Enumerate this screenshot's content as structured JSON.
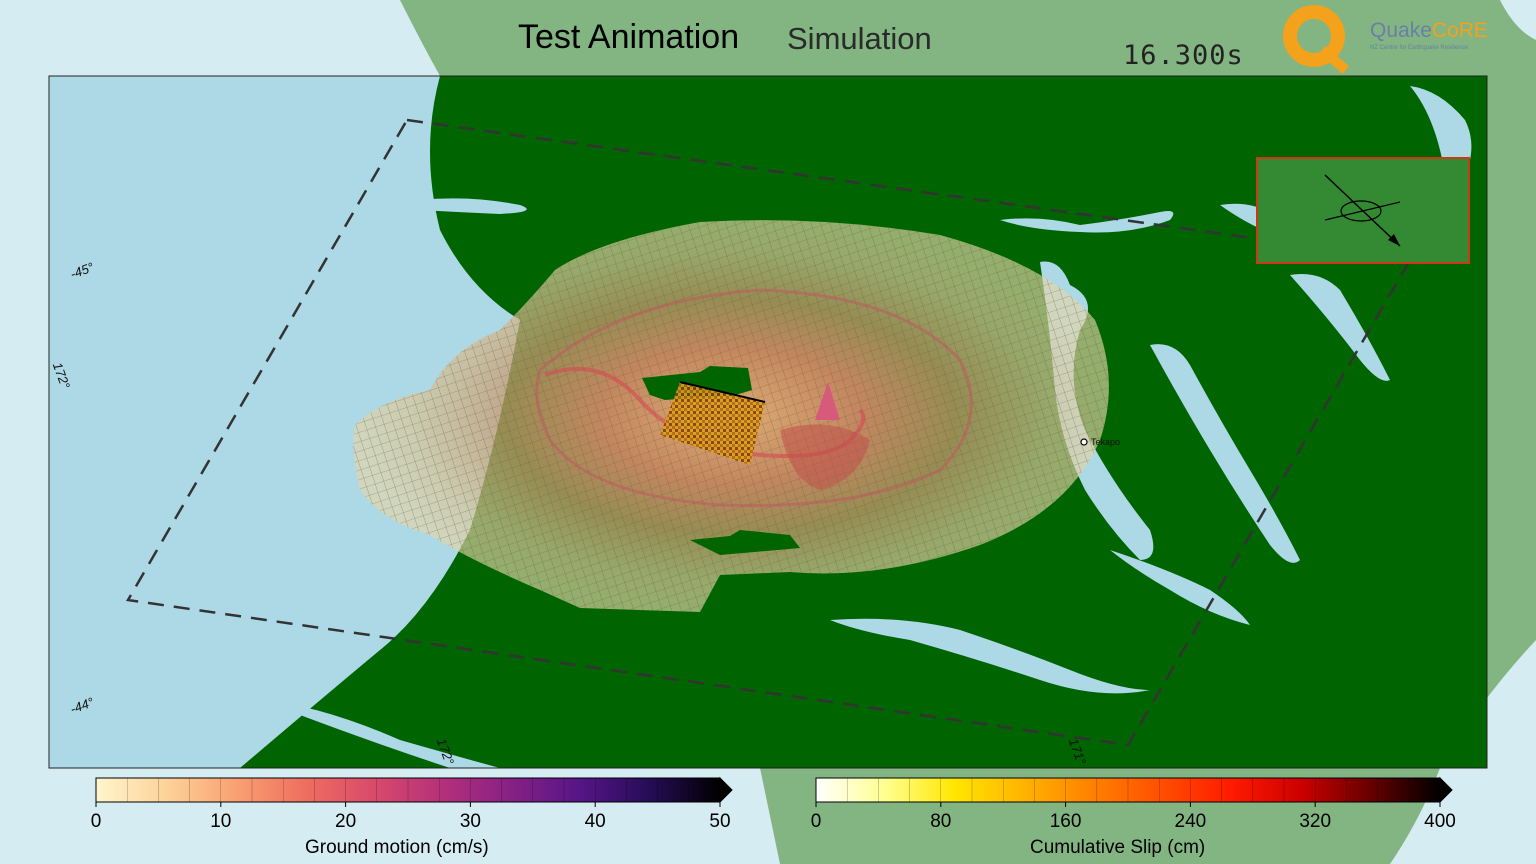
{
  "header": {
    "title": "Test Animation",
    "subtitle": "Simulation",
    "time": "16.300s",
    "logo": {
      "prefix": "Quake",
      "highlight": "CoRE",
      "tagline": "NZ Centre for Earthquake Resilience"
    }
  },
  "map": {
    "grid_labels": [
      "-45°",
      "172°",
      "-44°",
      "172°",
      "171°"
    ],
    "town": "Tekapo"
  },
  "colorbars": {
    "ground_motion": {
      "label": "Ground motion (cm/s)",
      "ticks": [
        "0",
        "10",
        "20",
        "30",
        "40",
        "50"
      ],
      "min": 0,
      "max": 50,
      "colors": [
        "#fef6cc",
        "#fdd39a",
        "#f9a273",
        "#ef6f5f",
        "#d94a6b",
        "#b4307a",
        "#862085",
        "#541586",
        "#250c55",
        "#000000"
      ]
    },
    "cumulative_slip": {
      "label": "Cumulative Slip (cm)",
      "ticks": [
        "0",
        "80",
        "160",
        "240",
        "320",
        "400"
      ],
      "min": 0,
      "max": 400,
      "colors": [
        "#ffffff",
        "#ffff90",
        "#ffe600",
        "#ffb300",
        "#ff8000",
        "#ff4d00",
        "#ff1a00",
        "#cc0000",
        "#660000",
        "#000000"
      ]
    }
  },
  "colors": {
    "land": "#006400",
    "outer_land": "#82b582",
    "water": "#add8e6",
    "outer_water": "#d6ecf3",
    "inset_box": "#cc3a14"
  }
}
